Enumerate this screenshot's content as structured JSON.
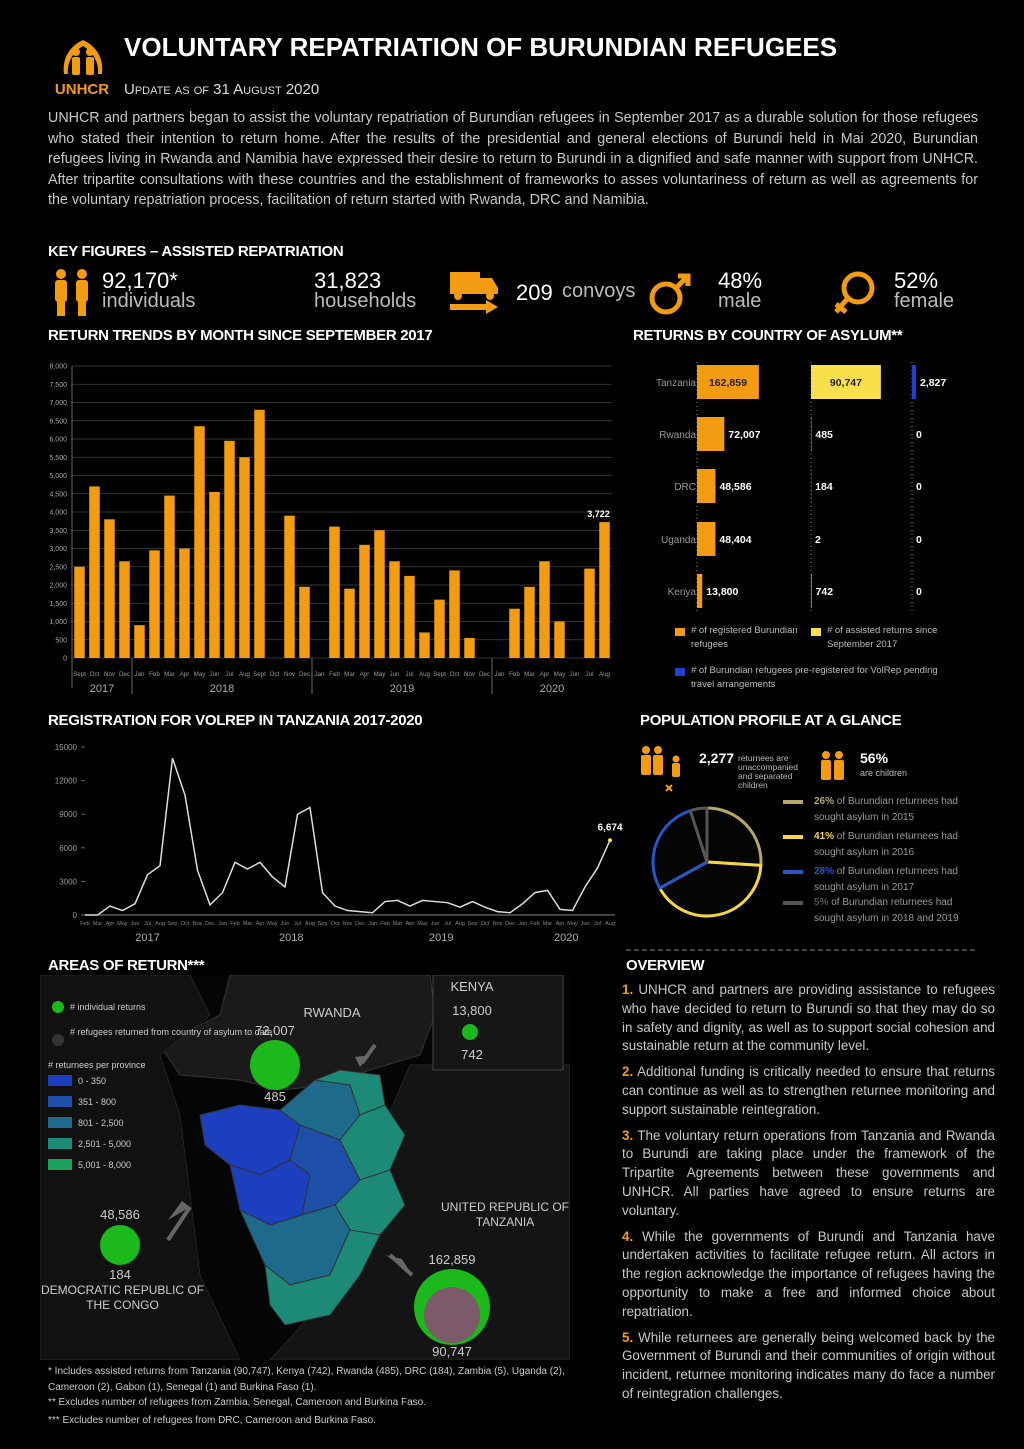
{
  "header": {
    "logo": "UNHCR",
    "title": "VOLUNTARY REPATRIATION OF BURUNDIAN REFUGEES",
    "subtitle": "Update as of 31 August 2020",
    "intro": "UNHCR and partners began to assist the voluntary repatriation of Burundian refugees in September 2017 as a durable solution for those refugees who stated their intention to return home. After the results of the presidential and general elections of Burundi held in Mai 2020, Burundian refugees living in Rwanda and Namibia have expressed their desire to return to Burundi in a dignified and safe manner with support from UNHCR. After tripartite consultations with these countries and the establishment of frameworks to asses voluntariness of return as well as agreements for the voluntary repatriation process, facilitation of return started with Rwanda, DRC and Namibia."
  },
  "key_figures": {
    "title": "KEY FIGURES – ASSISTED REPATRIATION",
    "items": [
      {
        "value": "92,170*",
        "label": "individuals"
      },
      {
        "value": "31,823",
        "label": "households"
      },
      {
        "value": "209",
        "label": "convoys"
      },
      {
        "value": "48%",
        "label": "male"
      },
      {
        "value": "52%",
        "label": "female"
      }
    ]
  },
  "returns_trend": {
    "type": "bar",
    "title": "RETURN TRENDS BY MONTH SINCE SEPTEMBER 2017",
    "categories": [
      "Sept",
      "Oct",
      "Nov",
      "Dec",
      "Jan",
      "Feb",
      "Mar",
      "Apr",
      "May",
      "Jun",
      "Jul",
      "Aug",
      "Sept",
      "Oct",
      "Nov",
      "Dec",
      "Jan",
      "Feb",
      "Mar",
      "Apr",
      "May",
      "Jun",
      "Jul",
      "Aug",
      "Sept",
      "Oct",
      "Nov",
      "Dec",
      "Jan",
      "Feb",
      "Mar",
      "Apr",
      "May",
      "Jun",
      "Jul",
      "Aug"
    ],
    "years": [
      "2017",
      "2018",
      "2019",
      "2020"
    ],
    "values": [
      2500,
      4700,
      3800,
      2650,
      900,
      2950,
      4450,
      3000,
      6350,
      4550,
      5950,
      5500,
      6800,
      0,
      3900,
      1950,
      0,
      3600,
      1900,
      3100,
      3500,
      2650,
      2250,
      700,
      1600,
      2400,
      550,
      0,
      0,
      1350,
      1950,
      2650,
      1000,
      0,
      2450,
      3722
    ],
    "value_labels": [
      null,
      null,
      null,
      null,
      null,
      null,
      null,
      null,
      null,
      null,
      null,
      null,
      null,
      null,
      null,
      null,
      null,
      null,
      null,
      null,
      null,
      null,
      null,
      null,
      null,
      null,
      null,
      null,
      null,
      null,
      null,
      null,
      null,
      null,
      null,
      "3,722"
    ],
    "color": "#f39c12",
    "ylim": [
      0,
      8000
    ],
    "yticks": [
      0,
      500,
      {
        "value": 1000,
        "label": "1,000"
      },
      {
        "value": 1500,
        "label": "1,500"
      },
      {
        "value": 2000,
        "label": "2,000"
      },
      {
        "value": 2500,
        "label": "2,500"
      },
      {
        "value": 3000,
        "label": "3,000"
      },
      {
        "value": 3500,
        "label": "3,500"
      },
      {
        "value": 4000,
        "label": "4,000"
      },
      {
        "value": 4500,
        "label": "4,500"
      },
      {
        "value": 5000,
        "label": "5,000"
      },
      {
        "value": 5500,
        "label": "5,500"
      },
      {
        "value": 6000,
        "label": "6,000"
      },
      {
        "value": 6500,
        "label": "6,500"
      },
      {
        "value": 7000,
        "label": "7,000"
      },
      {
        "value": 7500,
        "label": "7,500"
      },
      {
        "value": 8000,
        "label": "8,000"
      }
    ],
    "grid": true
  },
  "countries": {
    "type": "bar",
    "orientation": "horizontal",
    "title": "RETURNS BY COUNTRY OF ASYLUM**",
    "categories": [
      "Tanzania",
      "Rwanda",
      "DRC",
      "Uganda",
      "Kenya"
    ],
    "series": [
      {
        "name": "# of registered Burundian refugees",
        "color": "#f39c12",
        "values": [
          162859,
          72007,
          48586,
          48404,
          13800
        ],
        "value_labels": [
          "162,859",
          "72,007",
          "48,586",
          "48,404",
          "13,800"
        ]
      },
      {
        "name": "# of assisted returns since September 2017",
        "color": "#f7e04b",
        "values": [
          90747,
          485,
          184,
          2,
          742
        ],
        "value_labels": [
          "90,747",
          "485",
          "184",
          "2",
          "742"
        ]
      },
      {
        "name": "# of Burundian refugees pre-registered for VolRep pending travel arrangements",
        "color": "#1f3fd6",
        "values": [
          2827,
          0,
          0,
          0,
          0
        ],
        "value_labels": [
          "2,827",
          "0",
          "0",
          "0",
          "0"
        ]
      }
    ]
  },
  "registration": {
    "type": "line",
    "title": "REGISTRATION FOR VOLREP IN TANZANIA 2017-2020",
    "categories": [
      "Feb",
      "Mar",
      "Apr",
      "May",
      "Jun",
      "Jul",
      "Aug",
      "Sep",
      "Oct",
      "Nov",
      "Dec",
      "Jan",
      "Feb",
      "Mar",
      "Apr",
      "May",
      "Jun",
      "Jul",
      "Aug",
      "Sep",
      "Oct",
      "Nov",
      "Dec",
      "Jan",
      "Feb",
      "Mar",
      "Apr",
      "May",
      "Jun",
      "Jul",
      "Aug",
      "Sep",
      "Oct",
      "Nov",
      "Dec",
      "Jan",
      "Feb",
      "Mar",
      "Apr",
      "May",
      "Jun",
      "Jul",
      "Aug"
    ],
    "years": [
      "2017",
      "2018",
      "2019",
      "2020"
    ],
    "values": [
      0,
      0,
      800,
      400,
      1000,
      3600,
      4400,
      14000,
      10700,
      4000,
      900,
      2000,
      4700,
      4100,
      4700,
      3400,
      2500,
      9000,
      9600,
      2000,
      800,
      400,
      300,
      200,
      1200,
      1300,
      800,
      1300,
      1200,
      1100,
      700,
      1200,
      700,
      300,
      200,
      1000,
      2000,
      2200,
      500,
      400,
      2500,
      4200,
      6674
    ],
    "value_labels": [
      null,
      null,
      null,
      null,
      null,
      null,
      null,
      null,
      null,
      null,
      null,
      null,
      null,
      null,
      null,
      null,
      null,
      null,
      null,
      null,
      null,
      null,
      null,
      null,
      null,
      null,
      null,
      null,
      null,
      null,
      null,
      null,
      null,
      null,
      null,
      null,
      null,
      null,
      null,
      null,
      null,
      null,
      "6,674"
    ],
    "color": "#dddddd",
    "ylim": [
      0,
      15000
    ],
    "yticks": [
      0,
      3000,
      6000,
      9000,
      12000,
      15000
    ]
  },
  "population": {
    "title": "POPULATION PROFILE AT A GLANCE",
    "children_value": "2,277",
    "children_text": "returnees are unaccompanied and separated children",
    "share_value": "56%",
    "share_text": "are children",
    "pie": {
      "type": "pie",
      "values": [
        26,
        41,
        28,
        5
      ],
      "value_labels": [
        "26%",
        "41%",
        "28%",
        "5%"
      ],
      "labels": [
        "of Burundian returnees had sought asylum in 2015",
        "of Burundian returnees had sought asylum in 2016",
        "of Burundian returnees had sought asylum in 2017",
        "of Burundian returnees had sought asylum in 2018 and 2019"
      ],
      "colors": [
        "#b7a86a",
        "#f5d742",
        "#2855c8",
        "#555555"
      ]
    }
  },
  "map": {
    "title": "AREAS OF RETURN***",
    "legend": [
      "# individual returns",
      "# refugees returned from country of asylum to date",
      "# returnees per province"
    ],
    "ranges": [
      "0 - 350",
      "351 - 800",
      "801 - 2,500",
      "2,501 - 5,000",
      "5,001 - 8,000"
    ],
    "rwanda": {
      "name": "RWANDA",
      "registered": "72,007",
      "returns": "485"
    },
    "kenya": {
      "name": "KENYA",
      "registered": "13,800",
      "returns": "742"
    },
    "drc": {
      "name": "DEMOCRATIC REPUBLIC OF THE CONGO",
      "registered": "48,586",
      "returns": "184"
    },
    "tanzania": {
      "name": "UNITED REPUBLIC OF TANZANIA",
      "registered": "162,859",
      "returns": "90,747"
    },
    "footnotes": [
      "* Includes assisted returns from Tanzania (90,747), Kenya (742), Rwanda (485), DRC (184), Zambia (5), Uganda (2), Cameroon (2), Gabon (1), Senegal (1) and Burkina Faso (1).",
      "** Excludes number of refugees from Zambia, Senegal, Cameroon and Burkina Faso.",
      "*** Excludes number of refugees from DRC, Cameroon and Burkina Faso."
    ]
  },
  "overview": {
    "title": "OVERVIEW",
    "items": [
      {
        "num": "1.",
        "text": "UNHCR and partners are providing assistance to refugees who have decided to return to Burundi so that they may do so in safety and dignity, as well as to support social cohesion and sustainable return at the community level."
      },
      {
        "num": "2.",
        "text": "Additional funding is critically needed to ensure that returns can continue as well as to strengthen returnee monitoring and support sustainable reintegration."
      },
      {
        "num": "3.",
        "text": "The voluntary return operations from Tanzania and Rwanda to Burundi are taking place under the framework of the Tripartite Agreements between these governments and UNHCR. All parties have agreed to ensure returns are voluntary."
      },
      {
        "num": "4.",
        "text": "While the governments of Burundi and Tanzania have undertaken activities to facilitate refugee return. All actors in the region acknowledge the importance of refugees having the opportunity to make a free and informed choice about repatriation."
      },
      {
        "num": "5.",
        "text": "While returnees are generally being welcomed back by the Government of Burundi and their communities of origin without incident, returnee monitoring indicates many do face a number of reintegration challenges."
      }
    ]
  }
}
